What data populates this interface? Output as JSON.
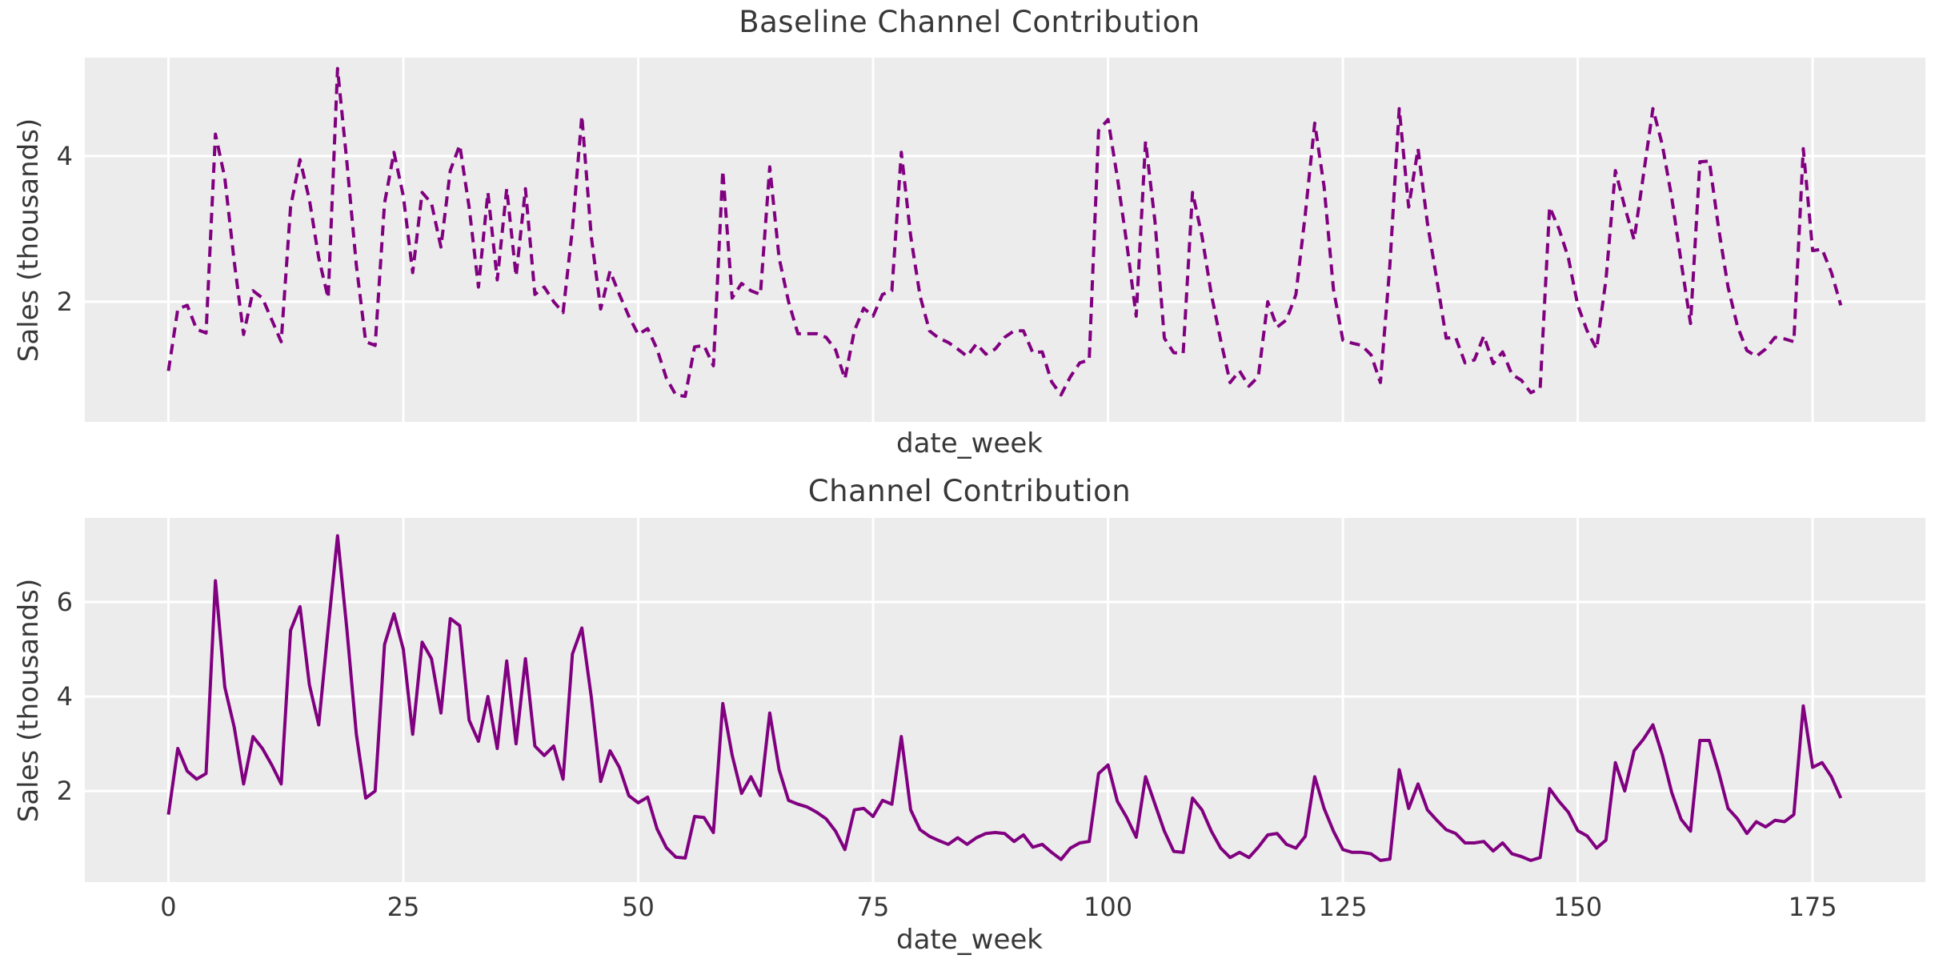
{
  "figure": {
    "background": "#ffffff",
    "plot_background": "#ececec",
    "grid_color": "#ffffff",
    "text_color": "#383838"
  },
  "chart_data": [
    {
      "type": "line",
      "name": "baseline-channel-contribution",
      "title": "Baseline Channel Contribution",
      "xlabel": "date_week",
      "ylabel": "Sales (thousands)",
      "line": {
        "color": "#800080",
        "style": "dashed",
        "width": 4
      },
      "grid": true,
      "legend": null,
      "xlim": [
        -8.9,
        187.0
      ],
      "ylim": [
        0.35,
        5.35
      ],
      "xticks": [
        0,
        25,
        50,
        75,
        100,
        125,
        150,
        175
      ],
      "show_xtick_labels": false,
      "yticks": [
        2,
        4
      ],
      "x_start": 0,
      "x_step": 1,
      "values": [
        1.05,
        1.9,
        1.95,
        1.62,
        1.57,
        4.3,
        3.7,
        2.55,
        1.55,
        2.15,
        2.05,
        1.75,
        1.45,
        3.3,
        3.95,
        3.4,
        2.6,
        2.05,
        5.2,
        3.9,
        2.5,
        1.45,
        1.4,
        3.35,
        4.05,
        3.45,
        2.4,
        3.5,
        3.35,
        2.75,
        3.8,
        4.15,
        3.3,
        2.2,
        3.5,
        2.3,
        3.55,
        2.35,
        3.55,
        2.1,
        2.2,
        2.0,
        1.85,
        3.0,
        4.55,
        2.9,
        1.9,
        2.42,
        2.1,
        1.8,
        1.55,
        1.63,
        1.35,
        0.95,
        0.72,
        0.7,
        1.38,
        1.4,
        1.12,
        3.8,
        2.05,
        2.25,
        2.15,
        2.1,
        3.85,
        2.6,
        2.0,
        1.56,
        1.56,
        1.56,
        1.51,
        1.34,
        0.94,
        1.6,
        1.91,
        1.8,
        2.1,
        2.15,
        4.05,
        2.9,
        2.08,
        1.6,
        1.5,
        1.44,
        1.35,
        1.25,
        1.42,
        1.28,
        1.35,
        1.51,
        1.6,
        1.6,
        1.3,
        1.31,
        0.9,
        0.72,
        0.97,
        1.16,
        1.2,
        4.35,
        4.5,
        3.7,
        2.8,
        1.8,
        4.2,
        3.1,
        1.5,
        1.3,
        1.29,
        3.5,
        2.9,
        2.1,
        1.47,
        0.89,
        1.05,
        0.84,
        0.97,
        2.0,
        1.65,
        1.75,
        2.1,
        3.2,
        4.45,
        3.58,
        2.17,
        1.47,
        1.43,
        1.4,
        1.27,
        0.89,
        2.5,
        4.65,
        3.3,
        4.1,
        3.08,
        2.3,
        1.5,
        1.51,
        1.16,
        1.2,
        1.53,
        1.15,
        1.31,
        1.0,
        0.92,
        0.75,
        0.81,
        3.3,
        3.0,
        2.6,
        1.95,
        1.6,
        1.35,
        2.3,
        3.8,
        3.3,
        2.85,
        3.75,
        4.65,
        4.15,
        3.43,
        2.55,
        1.7,
        3.92,
        3.93,
        3.0,
        2.2,
        1.66,
        1.33,
        1.25,
        1.35,
        1.51,
        1.49,
        1.45,
        4.1,
        2.7,
        2.72,
        2.4,
        1.95
      ]
    },
    {
      "type": "line",
      "name": "channel-contribution",
      "title": "Channel Contribution",
      "xlabel": "date_week",
      "ylabel": "Sales (thousands)",
      "line": {
        "color": "#800080",
        "style": "solid",
        "width": 4
      },
      "grid": true,
      "legend": null,
      "xlim": [
        -8.9,
        187.0
      ],
      "ylim": [
        0.07,
        7.78
      ],
      "xticks": [
        0,
        25,
        50,
        75,
        100,
        125,
        150,
        175
      ],
      "show_xtick_labels": true,
      "yticks": [
        2,
        4,
        6
      ],
      "x_start": 0,
      "x_step": 1,
      "values": [
        1.5,
        2.9,
        2.42,
        2.25,
        2.37,
        6.45,
        4.2,
        3.35,
        2.15,
        3.15,
        2.9,
        2.55,
        2.15,
        5.4,
        5.9,
        4.25,
        3.4,
        5.45,
        7.4,
        5.4,
        3.2,
        1.85,
        2.0,
        5.1,
        5.75,
        5.0,
        3.2,
        5.15,
        4.8,
        3.65,
        5.65,
        5.5,
        3.5,
        3.05,
        4.0,
        2.9,
        4.75,
        3.0,
        4.8,
        2.95,
        2.75,
        2.95,
        2.25,
        4.9,
        5.45,
        4.0,
        2.2,
        2.85,
        2.5,
        1.9,
        1.75,
        1.87,
        1.2,
        0.8,
        0.6,
        0.58,
        1.46,
        1.44,
        1.12,
        3.85,
        2.76,
        1.95,
        2.3,
        1.9,
        3.65,
        2.45,
        1.8,
        1.72,
        1.66,
        1.55,
        1.41,
        1.15,
        0.76,
        1.6,
        1.63,
        1.46,
        1.8,
        1.72,
        3.15,
        1.6,
        1.18,
        1.04,
        0.95,
        0.87,
        1.01,
        0.87,
        1.01,
        1.1,
        1.12,
        1.1,
        0.93,
        1.07,
        0.81,
        0.87,
        0.7,
        0.55,
        0.79,
        0.9,
        0.93,
        2.37,
        2.55,
        1.78,
        1.44,
        1.02,
        2.3,
        1.72,
        1.15,
        0.72,
        0.7,
        1.85,
        1.6,
        1.15,
        0.79,
        0.59,
        0.7,
        0.59,
        0.81,
        1.07,
        1.1,
        0.87,
        0.79,
        1.04,
        2.3,
        1.63,
        1.15,
        0.76,
        0.7,
        0.7,
        0.67,
        0.53,
        0.56,
        2.45,
        1.63,
        2.15,
        1.6,
        1.38,
        1.18,
        1.1,
        0.9,
        0.9,
        0.93,
        0.73,
        0.9,
        0.67,
        0.61,
        0.53,
        0.59,
        2.05,
        1.78,
        1.55,
        1.16,
        1.05,
        0.79,
        0.96,
        2.6,
        2.0,
        2.85,
        3.1,
        3.4,
        2.76,
        1.97,
        1.4,
        1.15,
        3.07,
        3.07,
        2.4,
        1.63,
        1.41,
        1.1,
        1.35,
        1.24,
        1.38,
        1.35,
        1.5,
        3.8,
        2.5,
        2.6,
        2.3,
        1.85
      ]
    }
  ]
}
